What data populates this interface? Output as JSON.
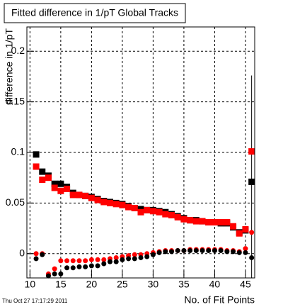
{
  "chart_data": {
    "type": "scatter",
    "title": "Fitted difference in 1/pT  Global Tracks",
    "xlabel": "No. of Fit Points",
    "ylabel": "difference in 1/pT",
    "timestamp": "Thu Oct 27 17:17:29 2011",
    "grid": true,
    "xlim": [
      9.5,
      46.5
    ],
    "xticks": [
      10,
      15,
      20,
      25,
      30,
      35,
      40,
      45
    ],
    "ylim": [
      -0.024,
      0.224
    ],
    "yticks": [
      0,
      0.05,
      0.1,
      0.15,
      0.2
    ],
    "x": [
      11,
      12,
      13,
      14,
      15,
      16,
      17,
      18,
      19,
      20,
      21,
      22,
      23,
      24,
      25,
      26,
      27,
      28,
      29,
      30,
      31,
      32,
      33,
      34,
      35,
      36,
      37,
      38,
      39,
      40,
      41,
      42,
      43,
      44,
      45,
      46
    ],
    "series": [
      {
        "marker": "square",
        "color": "#000000",
        "values": [
          0.098,
          0.081,
          0.077,
          0.069,
          0.069,
          0.066,
          0.06,
          0.058,
          0.057,
          0.056,
          0.054,
          0.052,
          0.051,
          0.05,
          0.049,
          0.047,
          0.045,
          0.044,
          0.043,
          0.043,
          0.042,
          0.041,
          0.039,
          0.037,
          0.035,
          0.033,
          0.033,
          0.032,
          0.031,
          0.031,
          0.03,
          0.03,
          0.026,
          0.021,
          0.023,
          0.071
        ],
        "errors": [
          null,
          null,
          null,
          null,
          null,
          null,
          null,
          null,
          null,
          null,
          null,
          null,
          null,
          null,
          null,
          null,
          null,
          null,
          null,
          null,
          null,
          null,
          null,
          null,
          null,
          null,
          null,
          null,
          null,
          null,
          null,
          null,
          null,
          null,
          null,
          0.105
        ]
      },
      {
        "marker": "square",
        "color": "#ff0000",
        "values": [
          0.086,
          0.073,
          0.075,
          0.065,
          0.062,
          0.064,
          0.058,
          0.058,
          0.057,
          0.055,
          0.053,
          0.051,
          0.05,
          0.049,
          0.048,
          0.046,
          0.045,
          0.041,
          0.043,
          0.042,
          0.041,
          0.039,
          0.038,
          0.036,
          0.034,
          0.033,
          0.032,
          0.032,
          0.031,
          0.031,
          0.031,
          0.031,
          0.027,
          0.02,
          0.024,
          0.101
        ]
      },
      {
        "marker": "circle",
        "color": "#ff0000",
        "values": [
          0.0,
          0.0,
          -0.02,
          -0.015,
          -0.007,
          -0.007,
          -0.007,
          -0.007,
          -0.007,
          -0.006,
          -0.006,
          -0.006,
          -0.005,
          -0.004,
          -0.003,
          -0.002,
          -0.001,
          -0.001,
          0.0,
          0.001,
          0.002,
          0.003,
          0.003,
          0.003,
          0.003,
          0.004,
          0.004,
          0.004,
          0.004,
          0.004,
          0.004,
          0.003,
          0.003,
          0.002,
          0.005,
          0.021
        ]
      },
      {
        "marker": "circle",
        "color": "#000000",
        "values": [
          -0.005,
          -0.001,
          -0.022,
          -0.02,
          -0.02,
          -0.014,
          -0.014,
          -0.013,
          -0.013,
          -0.012,
          -0.012,
          -0.01,
          -0.008,
          -0.008,
          -0.006,
          -0.005,
          -0.005,
          -0.004,
          -0.003,
          -0.001,
          0.001,
          0.002,
          0.002,
          0.003,
          0.003,
          0.003,
          0.003,
          0.003,
          0.003,
          0.003,
          0.003,
          0.002,
          0.002,
          0.001,
          0.001,
          -0.004
        ]
      }
    ]
  }
}
